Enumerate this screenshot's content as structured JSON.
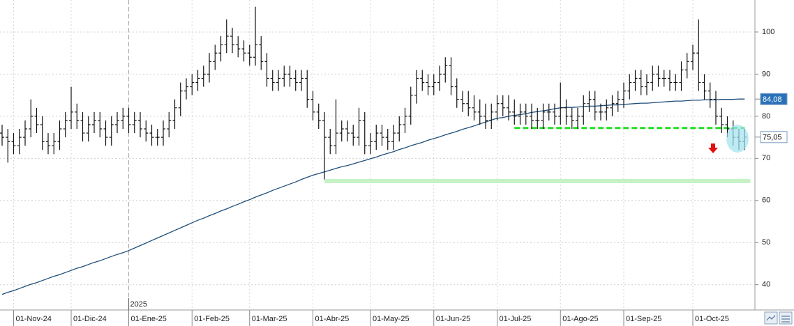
{
  "chart_data": {
    "type": "ohlc",
    "categories": [
      null,
      null,
      "01-Nov-24",
      null,
      null,
      null,
      null,
      null,
      null,
      null,
      null,
      null,
      "01-Dic-24",
      null,
      null,
      null,
      null,
      null,
      null,
      null,
      null,
      null,
      "01-Ene-25",
      null,
      null,
      null,
      null,
      null,
      null,
      null,
      null,
      null,
      null,
      "01-Feb-25",
      null,
      null,
      null,
      null,
      null,
      null,
      null,
      null,
      null,
      "01-Mar-25",
      null,
      null,
      null,
      null,
      null,
      null,
      null,
      null,
      null,
      null,
      "01-Abr-25",
      null,
      null,
      null,
      null,
      null,
      null,
      null,
      null,
      null,
      "01-May-25",
      null,
      null,
      null,
      null,
      null,
      null,
      null,
      null,
      null,
      null,
      "01-Jun-25",
      null,
      null,
      null,
      null,
      null,
      null,
      null,
      null,
      null,
      null,
      "01-Jul-25",
      null,
      null,
      null,
      null,
      null,
      null,
      null,
      null,
      null,
      null,
      "01-Ago-25",
      null,
      null,
      null,
      null,
      null,
      null,
      null,
      null,
      null,
      null,
      "01-Sep-25",
      null,
      null,
      null,
      null,
      null,
      null,
      null,
      null,
      null,
      null,
      null,
      "01-Oct-25",
      null,
      null,
      null,
      null,
      null,
      null,
      null,
      null,
      null
    ],
    "open": [
      76,
      75,
      74,
      73,
      75,
      77,
      80,
      78,
      74,
      73,
      74,
      77,
      79,
      81,
      79,
      76,
      78,
      79,
      77,
      75,
      78,
      79,
      80,
      78,
      79,
      77,
      76,
      75,
      75,
      77,
      79,
      82,
      86,
      87,
      88,
      89,
      90,
      93,
      95,
      97,
      99,
      97,
      96,
      95,
      94,
      97,
      93,
      89,
      88,
      89,
      90,
      89,
      88,
      89,
      84,
      81,
      79,
      75,
      73,
      76,
      77,
      76,
      75,
      79,
      73,
      74,
      76,
      75,
      74,
      76,
      78,
      80,
      85,
      89,
      88,
      87,
      88,
      90,
      92,
      87,
      84,
      83,
      82,
      81,
      80,
      79,
      81,
      83,
      82,
      81,
      80,
      81,
      80,
      79,
      79,
      81,
      81,
      80,
      82,
      80,
      79,
      80,
      83,
      84,
      81,
      81,
      82,
      83,
      84,
      86,
      88,
      89,
      87,
      88,
      90,
      89,
      89,
      88,
      88,
      91,
      93,
      95,
      88,
      86,
      84,
      80,
      78,
      77,
      75,
      74
    ],
    "high": [
      78,
      77,
      76,
      77,
      79,
      84,
      82,
      80,
      76,
      76,
      79,
      81,
      87,
      83,
      81,
      80,
      81,
      81,
      79,
      80,
      81,
      82,
      82,
      81,
      81,
      79,
      78,
      77,
      79,
      81,
      84,
      88,
      89,
      90,
      91,
      92,
      95,
      97,
      99,
      103,
      101,
      99,
      98,
      97,
      106,
      99,
      95,
      91,
      91,
      92,
      92,
      91,
      91,
      91,
      86,
      83,
      81,
      77,
      84,
      79,
      79,
      78,
      82,
      81,
      76,
      78,
      78,
      77,
      78,
      80,
      82,
      87,
      91,
      91,
      90,
      90,
      92,
      94,
      94,
      89,
      86,
      86,
      85,
      84,
      83,
      83,
      85,
      85,
      85,
      84,
      83,
      83,
      83,
      82,
      83,
      83,
      83,
      88,
      84,
      82,
      82,
      85,
      86,
      86,
      83,
      84,
      85,
      86,
      88,
      90,
      91,
      91,
      90,
      92,
      92,
      91,
      91,
      90,
      93,
      95,
      97,
      103,
      90,
      88,
      86,
      82,
      80,
      79,
      77,
      77
    ],
    "low": [
      73,
      69,
      71,
      71,
      73,
      75,
      76,
      72,
      71,
      71,
      72,
      75,
      77,
      77,
      74,
      74,
      76,
      75,
      73,
      73,
      76,
      77,
      76,
      76,
      75,
      74,
      73,
      73,
      73,
      75,
      77,
      80,
      84,
      85,
      86,
      87,
      88,
      91,
      93,
      95,
      95,
      94,
      93,
      92,
      92,
      91,
      87,
      86,
      86,
      87,
      87,
      86,
      86,
      82,
      79,
      77,
      65,
      71,
      71,
      74,
      74,
      73,
      73,
      71,
      71,
      72,
      73,
      72,
      72,
      74,
      76,
      78,
      83,
      86,
      85,
      85,
      86,
      88,
      85,
      82,
      81,
      80,
      79,
      78,
      77,
      77,
      79,
      80,
      79,
      78,
      78,
      78,
      77,
      77,
      77,
      79,
      78,
      78,
      78,
      77,
      77,
      78,
      81,
      79,
      79,
      79,
      80,
      81,
      82,
      84,
      86,
      85,
      85,
      86,
      87,
      87,
      86,
      86,
      86,
      89,
      91,
      86,
      84,
      82,
      78,
      76,
      75,
      73,
      72,
      72
    ],
    "close": [
      75,
      74,
      73,
      75,
      77,
      80,
      78,
      74,
      73,
      74,
      77,
      79,
      81,
      79,
      76,
      78,
      79,
      77,
      75,
      78,
      79,
      80,
      78,
      79,
      77,
      76,
      75,
      75,
      77,
      79,
      82,
      86,
      87,
      88,
      89,
      90,
      93,
      95,
      97,
      99,
      97,
      96,
      95,
      94,
      97,
      93,
      89,
      88,
      89,
      90,
      89,
      88,
      89,
      84,
      81,
      79,
      75,
      73,
      76,
      77,
      76,
      75,
      79,
      73,
      74,
      76,
      75,
      74,
      76,
      78,
      80,
      85,
      89,
      88,
      87,
      88,
      90,
      92,
      87,
      84,
      83,
      82,
      81,
      80,
      79,
      81,
      83,
      82,
      81,
      80,
      81,
      80,
      79,
      79,
      81,
      81,
      80,
      82,
      80,
      79,
      80,
      83,
      84,
      81,
      81,
      82,
      83,
      84,
      86,
      88,
      89,
      87,
      88,
      90,
      89,
      89,
      88,
      88,
      91,
      93,
      95,
      88,
      86,
      84,
      80,
      78,
      77,
      75,
      74,
      75.05
    ],
    "color": "#111111",
    "ma": {
      "color": "#1f4e79",
      "values": [
        37.7,
        38.2,
        38.6,
        39.1,
        39.6,
        40.1,
        40.5,
        41.0,
        41.5,
        42.0,
        42.4,
        42.9,
        43.4,
        43.9,
        44.3,
        44.8,
        45.3,
        45.7,
        46.2,
        46.7,
        47.2,
        47.6,
        48.1,
        48.7,
        49.3,
        49.9,
        50.5,
        51.1,
        51.7,
        52.3,
        52.9,
        53.5,
        54.1,
        54.7,
        55.3,
        55.8,
        56.4,
        56.9,
        57.5,
        58.0,
        58.6,
        59.1,
        59.7,
        60.2,
        60.8,
        61.3,
        61.8,
        62.4,
        62.9,
        63.4,
        63.9,
        64.4,
        65.0,
        65.5,
        66.0,
        66.4,
        66.8,
        67.2,
        67.6,
        68.0,
        68.3,
        68.7,
        69.1,
        69.5,
        69.9,
        70.3,
        70.8,
        71.2,
        71.6,
        72.1,
        72.5,
        73.0,
        73.4,
        73.8,
        74.3,
        74.7,
        75.1,
        75.6,
        76.0,
        76.4,
        76.9,
        77.3,
        77.7,
        78.2,
        78.6,
        79.1,
        79.5,
        79.7,
        80.0,
        80.2,
        80.4,
        80.6,
        80.9,
        81.1,
        81.3,
        81.5,
        81.8,
        82.0,
        82.1,
        82.1,
        82.2,
        82.3,
        82.4,
        82.4,
        82.5,
        82.6,
        82.7,
        82.7,
        82.8,
        82.9,
        83.0,
        83.1,
        83.1,
        83.2,
        83.3,
        83.4,
        83.5,
        83.6,
        83.6,
        83.7,
        83.8,
        83.8,
        83.9,
        83.9,
        83.9,
        84.0,
        84.0,
        84.0,
        84.1,
        84.08
      ]
    },
    "ylim": [
      34,
      107.6
    ],
    "yticks": [
      40,
      50,
      60,
      70,
      80,
      90,
      100
    ],
    "grid": true,
    "levels": [
      {
        "value": 77.2,
        "from": 89,
        "to": 129,
        "color": "#22dd22",
        "style": "dashed"
      },
      {
        "value": 64.6,
        "from": 56,
        "to": 130,
        "color": "#c6f2c6",
        "style": "solid"
      }
    ],
    "price_labels": [
      {
        "value": 84.08,
        "label": "84,08",
        "box_color": "#2a72b8",
        "text_color": "#ffffff"
      },
      {
        "value": 75.05,
        "label": "75,05",
        "box_color": "#ffffff",
        "text_color": "#111111"
      }
    ],
    "year_marker": {
      "label": "2025",
      "index": 22
    }
  }
}
